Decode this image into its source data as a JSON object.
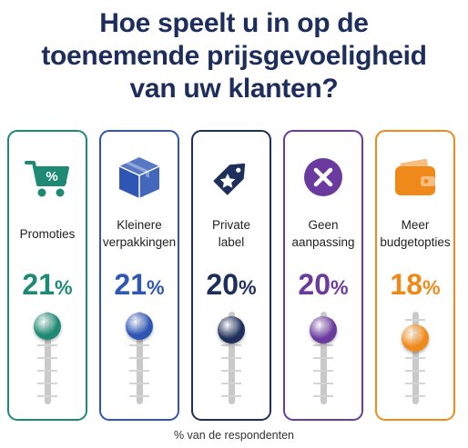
{
  "title_lines": [
    "Hoe speelt u in op de",
    "toenemende prijsgevoeligheid",
    "van uw klanten?"
  ],
  "footer": "% van de respondenten",
  "percent_sign": "%",
  "chart_data": {
    "type": "bar",
    "title": "Hoe speelt u in op de toenemende prijsgevoeligheid van uw klanten?",
    "categories": [
      "Promoties",
      "Kleinere verpakkingen",
      "Private label",
      "Geen aanpassing",
      "Meer budgetopties"
    ],
    "values": [
      21,
      21,
      20,
      20,
      18
    ],
    "unit": "%",
    "ylabel": "% van de respondenten",
    "ylim": [
      0,
      25
    ],
    "grid": false,
    "legend": "none"
  },
  "options": [
    {
      "label_lines": [
        "Promoties"
      ],
      "value": 21,
      "value_label": "21",
      "color": "#1f8a74",
      "icon": "shopping-cart-percent-icon"
    },
    {
      "label_lines": [
        "Kleinere",
        "verpakkingen"
      ],
      "value": 21,
      "value_label": "21",
      "color": "#2f56b4",
      "icon": "box-icon"
    },
    {
      "label_lines": [
        "Private",
        "label"
      ],
      "value": 20,
      "value_label": "20",
      "color": "#1e2f5c",
      "icon": "price-tag-star-icon"
    },
    {
      "label_lines": [
        "Geen",
        "aanpassing"
      ],
      "value": 20,
      "value_label": "20",
      "color": "#6b3a9e",
      "icon": "x-circle-icon"
    },
    {
      "label_lines": [
        "Meer",
        "budgetopties"
      ],
      "value": 18,
      "value_label": "18",
      "color": "#ef8a1a",
      "icon": "wallet-icon"
    }
  ]
}
